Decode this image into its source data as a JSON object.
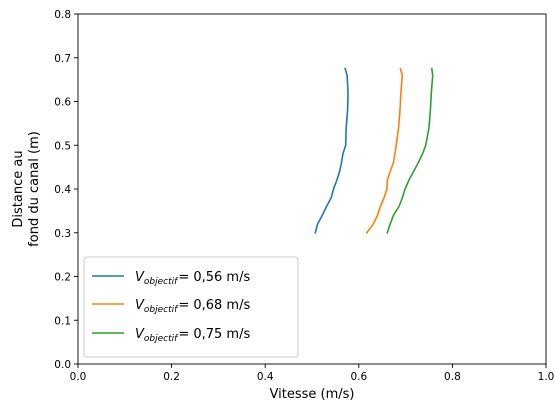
{
  "chart_data": {
    "type": "line",
    "xlabel": "Vitesse (m/s)",
    "ylabel_lines": [
      "Distance au",
      "fond du canal (m)"
    ],
    "xlim": [
      0.0,
      1.0
    ],
    "ylim": [
      0.0,
      0.8
    ],
    "x_ticks": [
      0.0,
      0.2,
      0.4,
      0.6,
      0.8,
      1.0
    ],
    "x_tick_labels": [
      "0.0",
      "0.2",
      "0.4",
      "0.6",
      "0.8",
      "1.0"
    ],
    "y_ticks": [
      0.0,
      0.1,
      0.2,
      0.3,
      0.4,
      0.5,
      0.6,
      0.7,
      0.8
    ],
    "y_tick_labels": [
      "0.0",
      "0.1",
      "0.2",
      "0.3",
      "0.4",
      "0.5",
      "0.6",
      "0.7",
      "0.8"
    ],
    "grid": false,
    "legend_position": "lower-left",
    "series": [
      {
        "name": "V_objectif = 0,56 m/s",
        "legend": {
          "symbol": "V",
          "subscript": "objectif",
          "rest": "= 0,56 m/s"
        },
        "color": "#1f77b4",
        "x": [
          0.507,
          0.512,
          0.522,
          0.531,
          0.541,
          0.546,
          0.553,
          0.559,
          0.563,
          0.566,
          0.572,
          0.573,
          0.576,
          0.577,
          0.575,
          0.571
        ],
        "y": [
          0.3,
          0.32,
          0.34,
          0.36,
          0.38,
          0.4,
          0.42,
          0.44,
          0.46,
          0.48,
          0.5,
          0.54,
          0.58,
          0.62,
          0.66,
          0.675
        ]
      },
      {
        "name": "V_objectif = 0,68 m/s",
        "legend": {
          "symbol": "V",
          "subscript": "objectif",
          "rest": "= 0,68 m/s"
        },
        "color": "#ff7f0e",
        "x": [
          0.617,
          0.631,
          0.64,
          0.646,
          0.654,
          0.66,
          0.661,
          0.667,
          0.674,
          0.68,
          0.685,
          0.688,
          0.69,
          0.693,
          0.689
        ],
        "y": [
          0.3,
          0.32,
          0.34,
          0.36,
          0.38,
          0.4,
          0.42,
          0.44,
          0.46,
          0.5,
          0.54,
          0.58,
          0.62,
          0.66,
          0.675
        ]
      },
      {
        "name": "V_objectif = 0,75 m/s",
        "legend": {
          "symbol": "V",
          "subscript": "objectif",
          "rest": "= 0,75 m/s"
        },
        "color": "#2ca02c",
        "x": [
          0.661,
          0.667,
          0.674,
          0.686,
          0.693,
          0.699,
          0.707,
          0.717,
          0.727,
          0.736,
          0.743,
          0.75,
          0.753,
          0.755,
          0.758,
          0.756
        ],
        "y": [
          0.3,
          0.32,
          0.34,
          0.36,
          0.38,
          0.4,
          0.42,
          0.44,
          0.46,
          0.48,
          0.5,
          0.54,
          0.58,
          0.62,
          0.66,
          0.675
        ]
      }
    ]
  }
}
